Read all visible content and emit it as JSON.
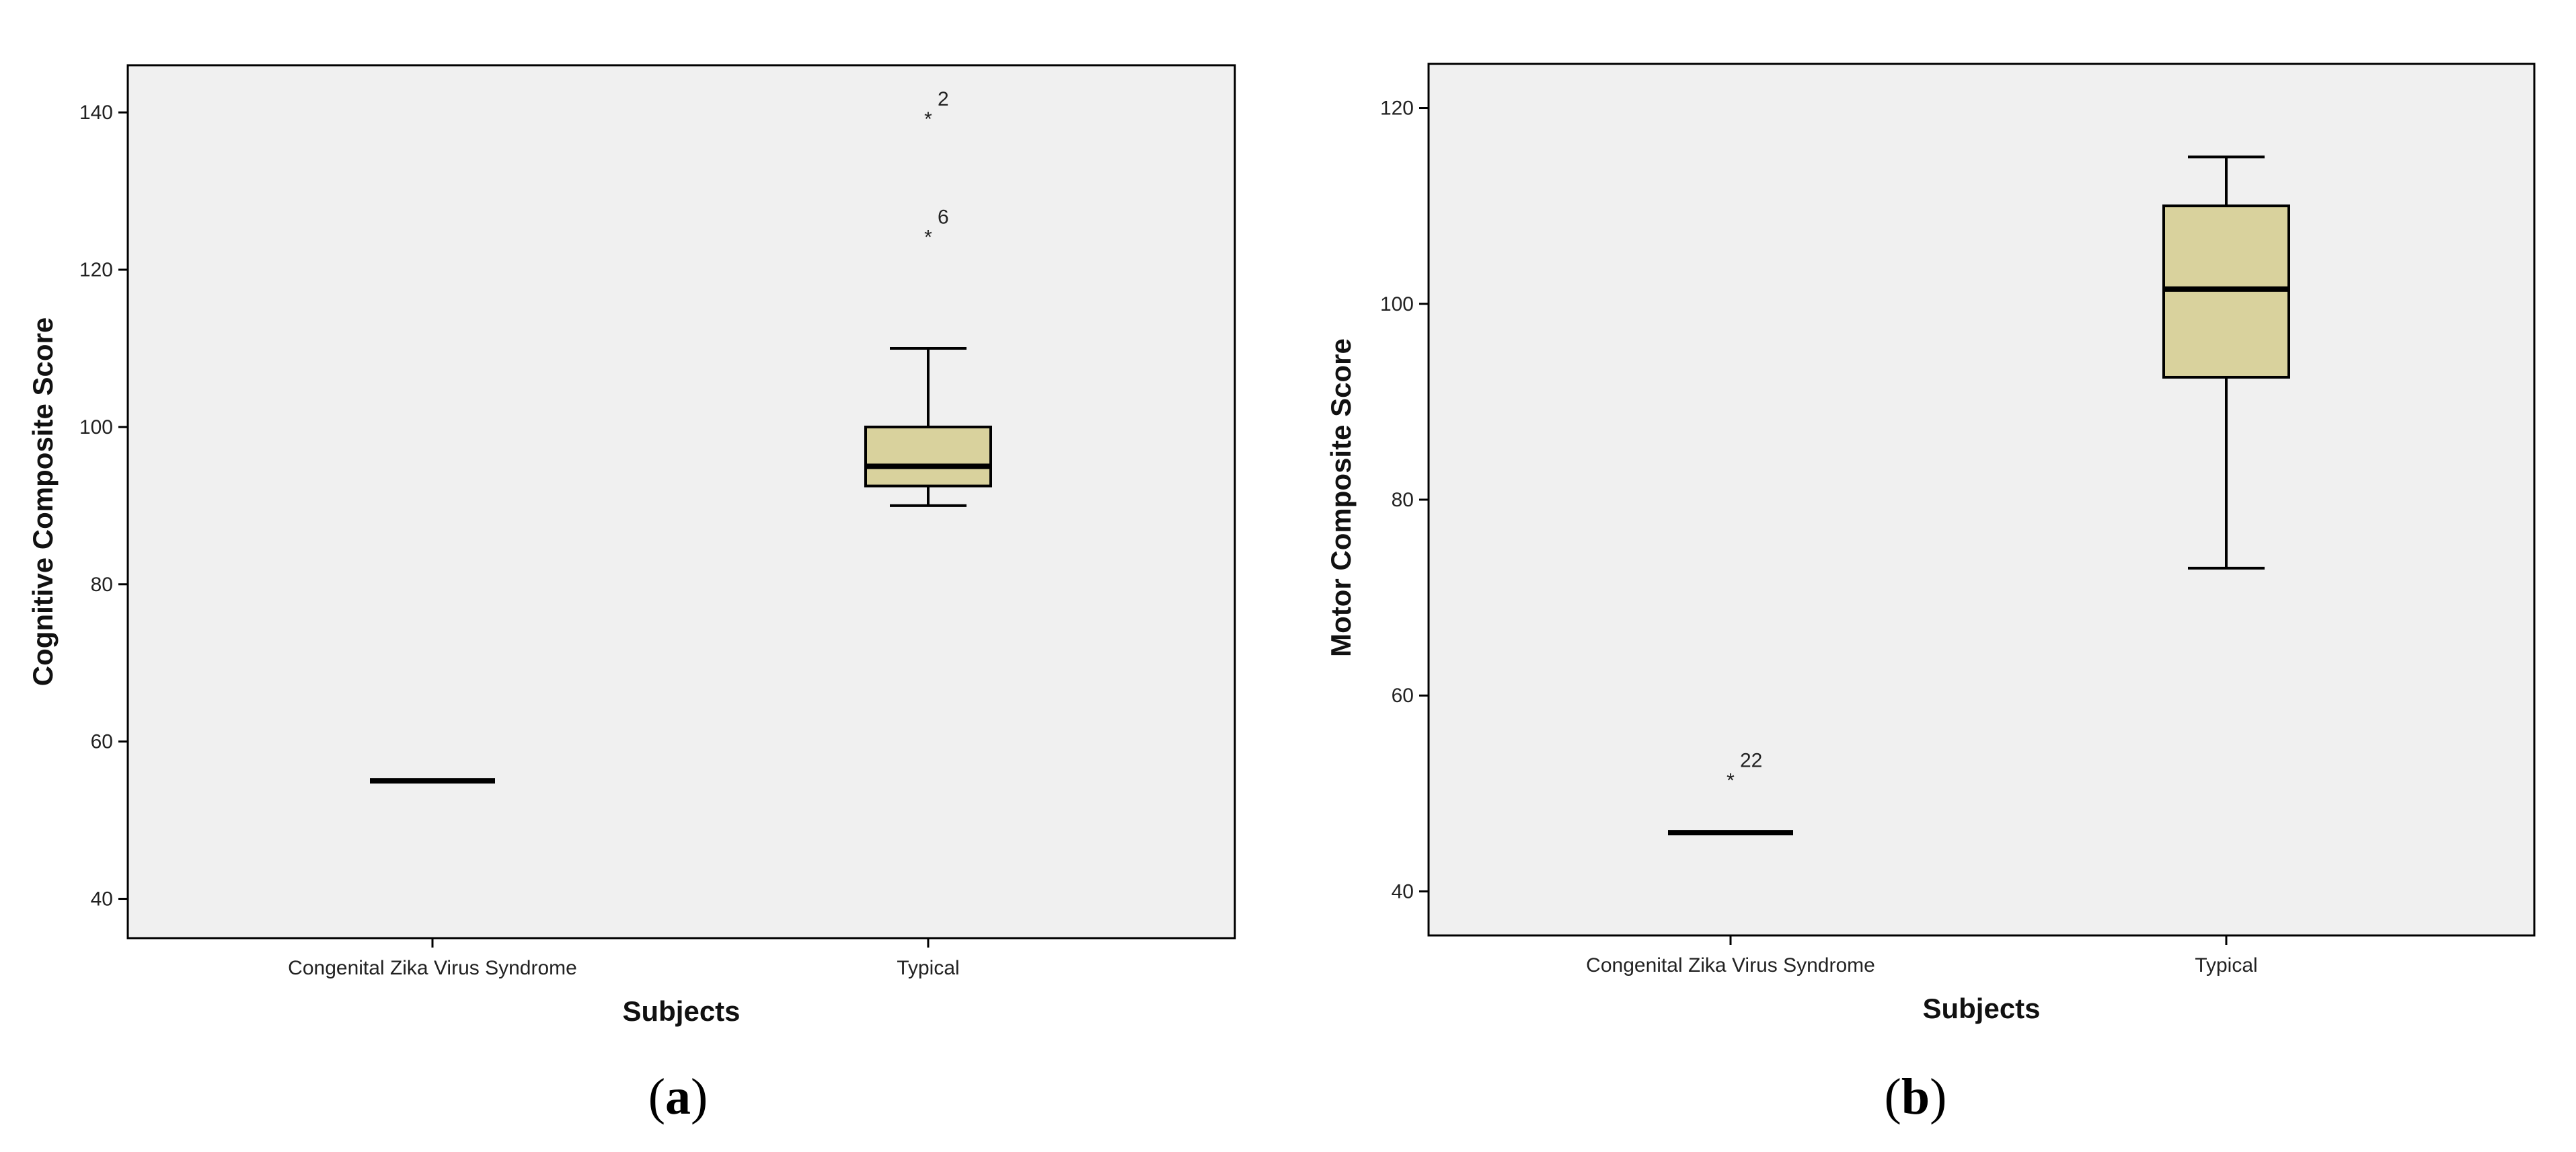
{
  "colors": {
    "plot_background": "#f0f0f0",
    "box_fill": "#d9d29d",
    "line": "#000000"
  },
  "chart_data": [
    {
      "type": "boxplot",
      "panel_label": "(a)",
      "panel_letter": "a",
      "xlabel": "Subjects",
      "ylabel": "Cognitive Composite Score",
      "ylim": [
        35,
        146
      ],
      "yticks": [
        "40",
        "60",
        "80",
        "100",
        "120",
        "140"
      ],
      "categories": [
        "Congenital Zika Virus Syndrome",
        "Typical"
      ],
      "boxes": [
        {
          "category": "Congenital Zika Virus Syndrome",
          "min": 55,
          "q1": 55,
          "median": 55,
          "q3": 55,
          "max": 55,
          "outliers": []
        },
        {
          "category": "Typical",
          "min": 90,
          "q1": 92.5,
          "median": 95,
          "q3": 100,
          "max": 110,
          "outliers": [
            {
              "value": 140,
              "label": "2"
            },
            {
              "value": 125,
              "label": "6"
            }
          ]
        }
      ]
    },
    {
      "type": "boxplot",
      "panel_label": "(b)",
      "panel_letter": "b",
      "xlabel": "Subjects",
      "ylabel": "Motor Composite Score",
      "ylim": [
        35.5,
        124.5
      ],
      "yticks": [
        "40",
        "60",
        "80",
        "100",
        "120"
      ],
      "categories": [
        "Congenital Zika Virus Syndrome",
        "Typical"
      ],
      "boxes": [
        {
          "category": "Congenital Zika Virus Syndrome",
          "min": 46,
          "q1": 46,
          "median": 46,
          "q3": 46,
          "max": 46,
          "outliers": [
            {
              "value": 52,
              "label": "22"
            }
          ]
        },
        {
          "category": "Typical",
          "min": 73,
          "q1": 92.5,
          "median": 101.5,
          "q3": 110,
          "max": 115,
          "outliers": []
        }
      ]
    }
  ]
}
